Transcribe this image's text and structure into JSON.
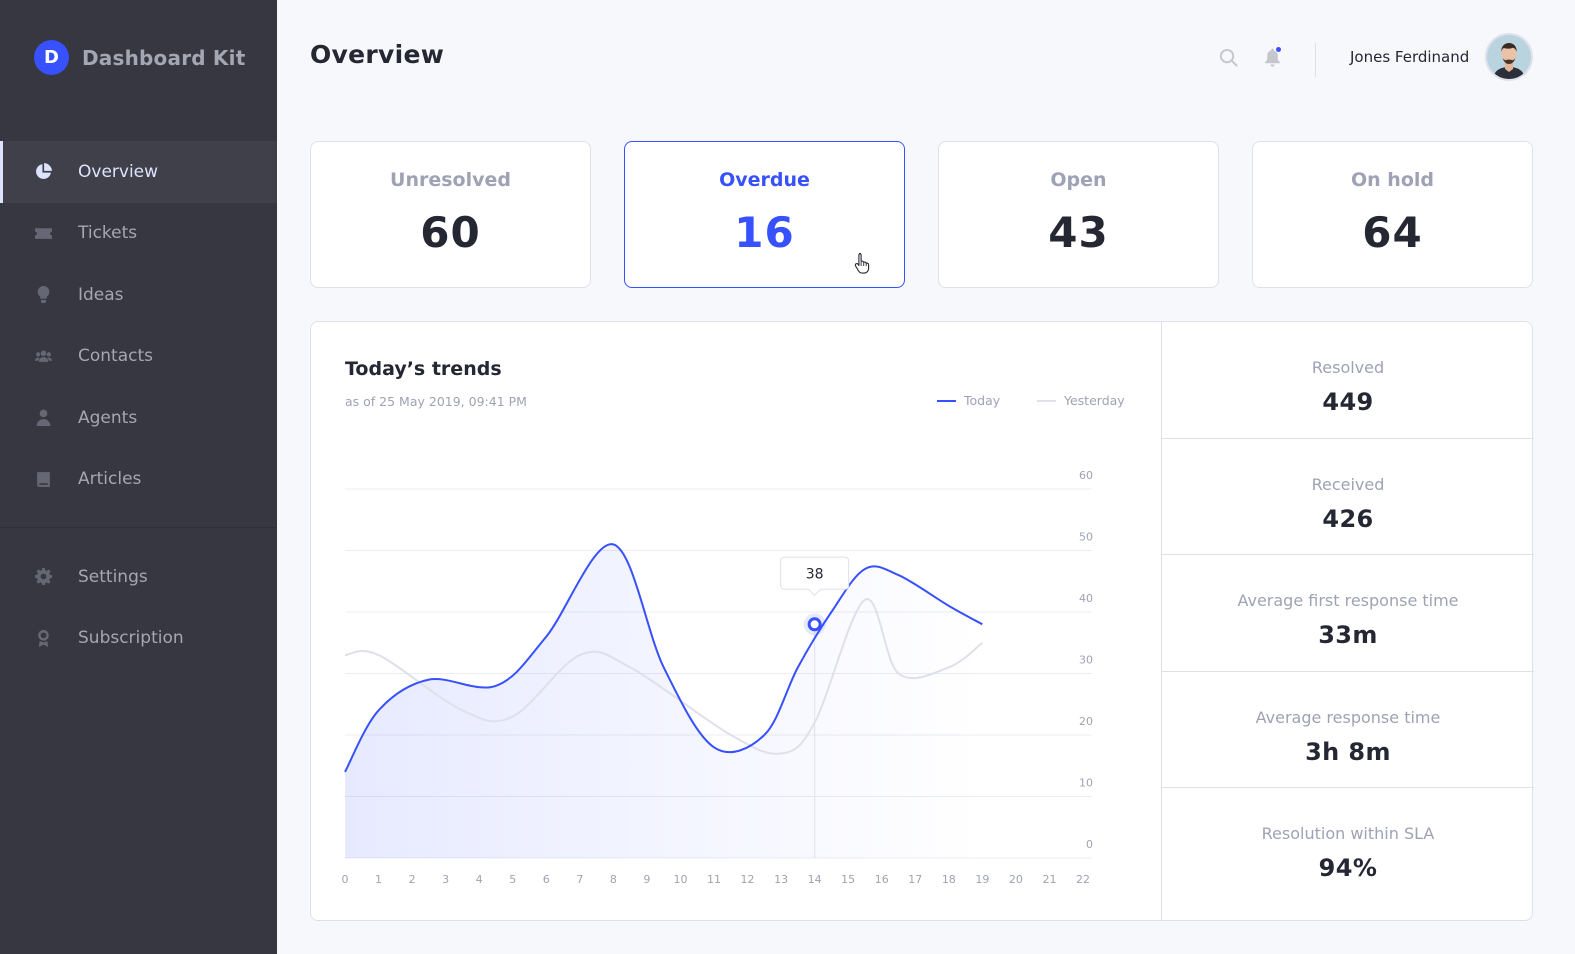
{
  "brand": {
    "logo_letter": "D",
    "name": "Dashboard Kit",
    "accent": "#3751FF"
  },
  "sidebar": {
    "items": [
      {
        "label": "Overview",
        "icon": "pie-chart-icon",
        "active": true
      },
      {
        "label": "Tickets",
        "icon": "ticket-icon"
      },
      {
        "label": "Ideas",
        "icon": "lightbulb-icon"
      },
      {
        "label": "Contacts",
        "icon": "users-icon"
      },
      {
        "label": "Agents",
        "icon": "agent-icon"
      },
      {
        "label": "Articles",
        "icon": "book-icon"
      }
    ],
    "secondary": [
      {
        "label": "Settings",
        "icon": "gear-icon"
      },
      {
        "label": "Subscription",
        "icon": "medal-icon"
      }
    ]
  },
  "header": {
    "title": "Overview",
    "user_name": "Jones Ferdinand"
  },
  "cards": [
    {
      "label": "Unresolved",
      "value": "60"
    },
    {
      "label": "Overdue",
      "value": "16",
      "active": true
    },
    {
      "label": "Open",
      "value": "43"
    },
    {
      "label": "On hold",
      "value": "64"
    }
  ],
  "trends": {
    "title": "Today’s trends",
    "subtitle": "as of 25 May 2019, 09:41 PM",
    "legend_today": "Today",
    "legend_yesterday": "Yesterday"
  },
  "stats": [
    {
      "label": "Resolved",
      "value": "449"
    },
    {
      "label": "Received",
      "value": "426"
    },
    {
      "label": "Average first response time",
      "value": "33m"
    },
    {
      "label": "Average response time",
      "value": "3h 8m"
    },
    {
      "label": "Resolution within SLA",
      "value": "94%"
    }
  ],
  "chart_data": {
    "type": "line",
    "x": [
      0,
      1,
      2,
      3,
      4,
      5,
      6,
      7,
      8,
      9,
      10,
      11,
      12,
      13,
      14,
      15,
      16,
      17,
      18,
      19
    ],
    "x_ticks": [
      "0",
      "1",
      "2",
      "3",
      "4",
      "5",
      "6",
      "7",
      "8",
      "9",
      "10",
      "11",
      "12",
      "13",
      "14",
      "15",
      "16",
      "17",
      "18",
      "19",
      "20",
      "21",
      "22"
    ],
    "y_ticks": [
      "0",
      "10",
      "20",
      "30",
      "40",
      "50",
      "60"
    ],
    "ylim": [
      0,
      60
    ],
    "xlim": [
      0,
      22
    ],
    "series": [
      {
        "name": "Today",
        "color": "#3751FF",
        "values": [
          14,
          24,
          29,
          28,
          36,
          51,
          31,
          18,
          20,
          31,
          40,
          47,
          46,
          41,
          38
        ],
        "x": [
          0,
          1,
          2.5,
          4.5,
          6,
          8,
          9.5,
          11,
          12.5,
          13.5,
          14.5,
          15.5,
          16.5,
          18,
          19
        ]
      },
      {
        "name": "Yesterday",
        "color": "#DFE0EB",
        "values": [
          33,
          33,
          24,
          23,
          33,
          31,
          20,
          17,
          22,
          42,
          30,
          31,
          35
        ],
        "x": [
          0,
          1,
          3.5,
          5,
          7,
          8.5,
          11.5,
          13,
          14,
          15.5,
          16.5,
          18,
          19
        ]
      }
    ],
    "tooltip": {
      "x": 14,
      "value": "38"
    },
    "grid": true,
    "legend_position": "top-right"
  }
}
